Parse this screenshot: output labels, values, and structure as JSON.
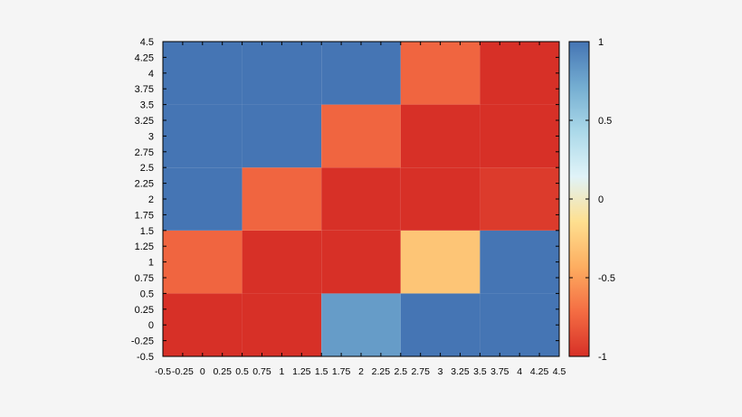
{
  "chart_data": {
    "type": "heatmap",
    "title": "",
    "xlabel": "",
    "ylabel": "",
    "xlim": [
      -0.5,
      4.5
    ],
    "ylim": [
      -0.5,
      4.5
    ],
    "grid": false,
    "x_ticks": [
      "-0.5",
      "-0.25",
      "0",
      "0.25",
      "0.5",
      "0.75",
      "1",
      "1.25",
      "1.5",
      "1.75",
      "2",
      "2.25",
      "2.5",
      "2.75",
      "3",
      "3.25",
      "3.5",
      "3.75",
      "4",
      "4.25",
      "4.5"
    ],
    "y_ticks": [
      "-0.5",
      "-0.25",
      "0",
      "0.25",
      "0.5",
      "0.75",
      "1",
      "1.25",
      "1.5",
      "1.75",
      "2",
      "2.25",
      "2.5",
      "2.75",
      "3",
      "3.25",
      "3.5",
      "3.75",
      "4",
      "4.25",
      "4.5"
    ],
    "x_categories": [
      0,
      1,
      2,
      3,
      4
    ],
    "y_categories": [
      0,
      1,
      2,
      3,
      4
    ],
    "values": [
      [
        -1.0,
        -1.0,
        0.8,
        1.0,
        1.0
      ],
      [
        -0.75,
        -1.0,
        -1.0,
        -0.3,
        1.0
      ],
      [
        1.0,
        -0.75,
        -1.0,
        -1.0,
        -0.95
      ],
      [
        1.0,
        1.0,
        -0.75,
        -1.0,
        -1.0
      ],
      [
        1.0,
        1.0,
        1.0,
        -0.75,
        -1.0
      ]
    ],
    "colorbar": {
      "min": -1,
      "max": 1,
      "tick_labels": [
        "1",
        "0.5",
        "0",
        "-0.5",
        "-1"
      ],
      "tick_values": [
        1,
        0.5,
        0,
        -0.5,
        -1
      ],
      "colors": [
        "#d73027",
        "#f46d43",
        "#fdae61",
        "#fee090",
        "#e0f3f8",
        "#abd9e9",
        "#74add1",
        "#4575b4"
      ]
    }
  }
}
